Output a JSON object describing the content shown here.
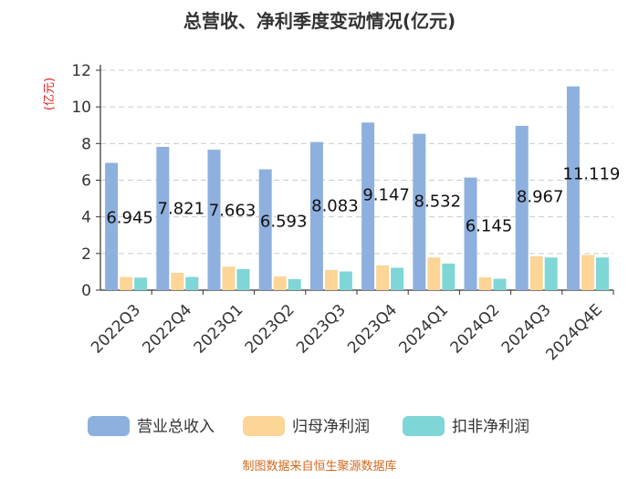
{
  "chart_data": {
    "type": "bar",
    "title": "总营收、净利季度变动情况(亿元)",
    "ylabel": "(亿元)",
    "ylim": [
      0,
      12
    ],
    "yticks": [
      "0",
      "2",
      "4",
      "6",
      "8",
      "10",
      "12"
    ],
    "grid": true,
    "legend_position": "bottom",
    "categories": [
      "2022Q3",
      "2022Q4",
      "2023Q1",
      "2023Q2",
      "2023Q3",
      "2023Q4",
      "2024Q1",
      "2024Q2",
      "2024Q3",
      "2024Q4E"
    ],
    "series": [
      {
        "name": "营业总收入",
        "color": "#8eb0de",
        "values": [
          6.945,
          7.821,
          7.663,
          6.593,
          8.083,
          9.147,
          8.532,
          6.145,
          8.967,
          11.119
        ],
        "labels": [
          "6.945",
          "7.821",
          "7.663",
          "6.593",
          "8.083",
          "9.147",
          "8.532",
          "6.145",
          "8.967",
          "11.119"
        ]
      },
      {
        "name": "归母净利润",
        "color": "#fcd597",
        "values": [
          0.72,
          0.95,
          1.28,
          0.75,
          1.1,
          1.35,
          1.78,
          0.7,
          1.85,
          1.92
        ]
      },
      {
        "name": "扣非净利润",
        "color": "#7fd6d6",
        "values": [
          0.68,
          0.72,
          1.15,
          0.6,
          1.02,
          1.22,
          1.45,
          0.62,
          1.78,
          1.78
        ]
      }
    ]
  },
  "source_text": "制图数据来自恒生聚源数据库"
}
